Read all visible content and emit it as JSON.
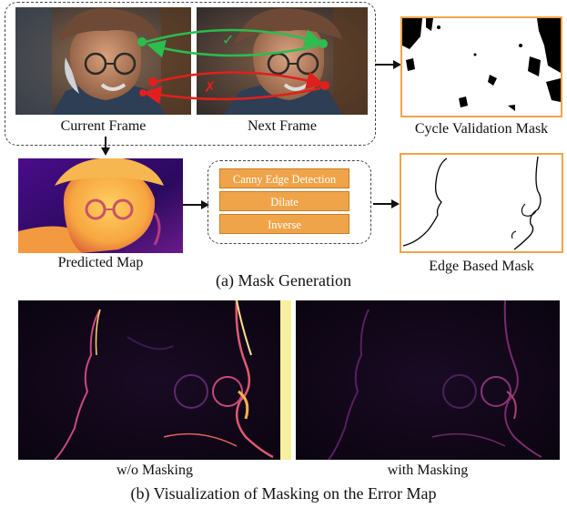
{
  "top": {
    "current_frame_label": "Current Frame",
    "next_frame_label": "Next Frame",
    "cycle_mask_label": "Cycle Validation Mask",
    "check_mark": "✓",
    "cross_mark": "✗"
  },
  "middle": {
    "predicted_map_label": "Predicted Map",
    "steps": [
      "Canny Edge Detection",
      "Dilate",
      "Inverse"
    ],
    "edge_mask_label": "Edge Based Mask",
    "section_caption": "(a) Mask Generation"
  },
  "bottom": {
    "without_label": "w/o Masking",
    "with_label": "with Masking",
    "section_caption": "(b) Visualization of Masking on the Error Map"
  },
  "colors": {
    "accent_orange": "#f0a44a",
    "green_track": "#2bbd4f",
    "red_track": "#e0201c"
  }
}
